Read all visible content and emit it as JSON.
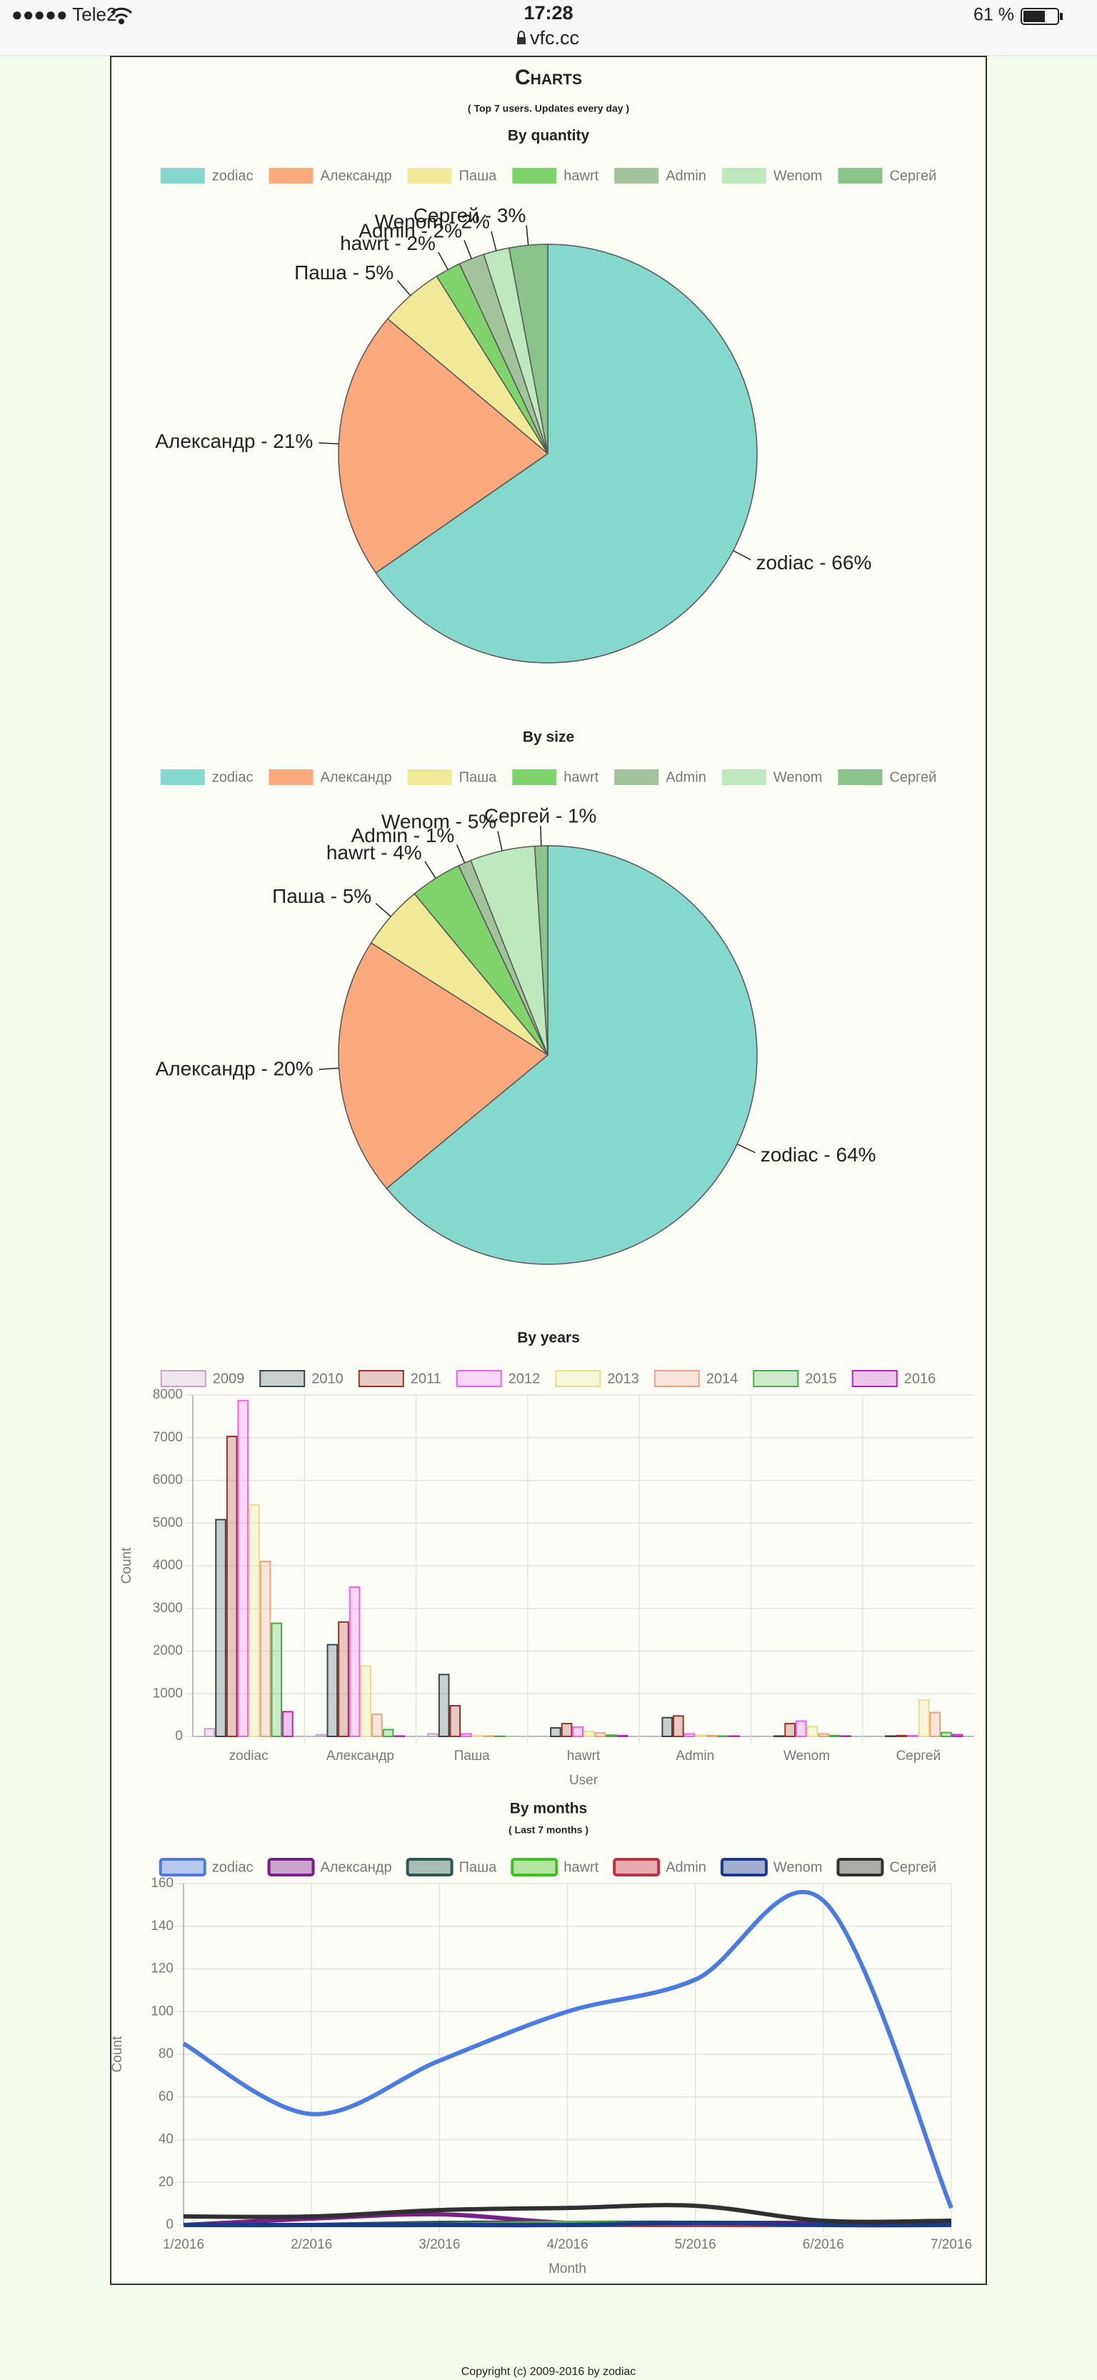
{
  "status_bar": {
    "carrier": "●●●●● Tele2",
    "time": "17:28",
    "url": "vfc.cc",
    "battery": "61 %"
  },
  "header": {
    "title": "Charts",
    "subtitle": "( Top 7 users. Updates every day )"
  },
  "chart_data": [
    {
      "type": "pie",
      "title": "By quantity",
      "categories": [
        "zodiac",
        "Александр",
        "Паша",
        "hawrt",
        "Admin",
        "Wenom",
        "Сергей"
      ],
      "values": [
        66,
        21,
        5,
        2,
        2,
        2,
        3
      ],
      "value_labels": [
        "zodiac - 66%",
        "Александр - 21%",
        "Паша - 5%",
        "hawrt - 2%",
        "Admin - 2%",
        "Wenom - 2%",
        "Сергей - 3%"
      ],
      "colors": [
        "#84d9cc",
        "#f9a97b",
        "#f0ea98",
        "#7ed36b",
        "#a3c49a",
        "#bde9bd",
        "#8ac48a"
      ]
    },
    {
      "type": "pie",
      "title": "By size",
      "categories": [
        "zodiac",
        "Александр",
        "Паша",
        "hawrt",
        "Admin",
        "Wenom",
        "Сергей"
      ],
      "values": [
        64,
        20,
        5,
        4,
        1,
        5,
        1
      ],
      "value_labels": [
        "zodiac - 64%",
        "Александр - 20%",
        "Паша - 5%",
        "hawrt - 4%",
        "Admin - 1%",
        "Wenom - 5%",
        "Сергей - 1%"
      ],
      "colors": [
        "#84d9cc",
        "#f9a97b",
        "#f0ea98",
        "#7ed36b",
        "#a3c49a",
        "#bde9bd",
        "#8ac48a"
      ]
    },
    {
      "type": "bar",
      "title": "By years",
      "categories": [
        "zodiac",
        "Александр",
        "Паша",
        "hawrt",
        "Admin",
        "Wenom",
        "Сергей"
      ],
      "series": [
        {
          "name": "2009",
          "color": "#c8a0c8",
          "values": [
            180,
            40,
            60,
            0,
            0,
            0,
            0
          ]
        },
        {
          "name": "2010",
          "color": "#304848",
          "values": [
            5080,
            2150,
            1450,
            200,
            440,
            10,
            10
          ]
        },
        {
          "name": "2011",
          "color": "#a03020",
          "values": [
            7030,
            2680,
            720,
            300,
            480,
            300,
            20
          ]
        },
        {
          "name": "2012",
          "color": "#f060f0",
          "values": [
            7870,
            3500,
            60,
            220,
            60,
            360,
            20
          ]
        },
        {
          "name": "2013",
          "color": "#e8e080",
          "values": [
            5420,
            1650,
            20,
            120,
            30,
            230,
            850
          ]
        },
        {
          "name": "2014",
          "color": "#f0a080",
          "values": [
            4100,
            520,
            10,
            80,
            20,
            60,
            560
          ]
        },
        {
          "name": "2015",
          "color": "#40b040",
          "values": [
            2650,
            160,
            5,
            30,
            10,
            20,
            90
          ]
        },
        {
          "name": "2016",
          "color": "#c020c0",
          "values": [
            580,
            10,
            0,
            20,
            10,
            10,
            40
          ]
        }
      ],
      "ylim": [
        0,
        8000
      ],
      "yticks": [
        0,
        1000,
        2000,
        3000,
        4000,
        5000,
        6000,
        7000,
        8000
      ],
      "ylabel": "Count",
      "xlabel": "User",
      "grid": true
    },
    {
      "type": "line",
      "title": "By months",
      "subtitle": "( Last 7 months )",
      "categories": [
        "1/2016",
        "2/2016",
        "3/2016",
        "4/2016",
        "5/2016",
        "6/2016",
        "7/2016"
      ],
      "series": [
        {
          "name": "zodiac",
          "color": "#4a7be0",
          "values": [
            85,
            52,
            77,
            100,
            115,
            152,
            8
          ]
        },
        {
          "name": "Александр",
          "color": "#7a1f8a",
          "values": [
            0,
            3,
            5,
            1,
            1,
            1,
            1
          ]
        },
        {
          "name": "Паша",
          "color": "#2c5a50",
          "values": [
            0,
            0,
            1,
            1,
            1,
            0,
            0
          ]
        },
        {
          "name": "hawrt",
          "color": "#40c020",
          "values": [
            0,
            0,
            0,
            1,
            0,
            0,
            0
          ]
        },
        {
          "name": "Admin",
          "color": "#c03040",
          "values": [
            0,
            0,
            0,
            0,
            0,
            0,
            0
          ]
        },
        {
          "name": "Wenom",
          "color": "#1a3a90",
          "values": [
            0,
            0,
            0,
            0,
            1,
            0,
            0
          ]
        },
        {
          "name": "Сергей",
          "color": "#303030",
          "values": [
            4,
            4,
            7,
            8,
            9,
            2,
            2
          ]
        }
      ],
      "ylim": [
        0,
        160
      ],
      "yticks": [
        0,
        20,
        40,
        60,
        80,
        100,
        120,
        140,
        160
      ],
      "ylabel": "Count",
      "xlabel": "Month",
      "grid": true
    }
  ],
  "footer": "Copyright (c) 2009-2016 by zodiac"
}
